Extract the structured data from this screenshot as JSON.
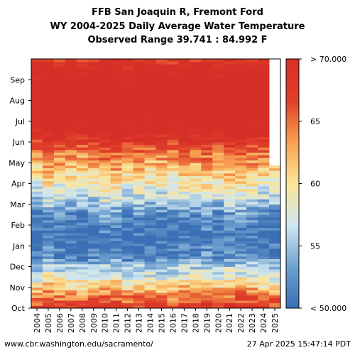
{
  "header": {
    "title": "FFB San Joaquin R, Fremont Ford",
    "subtitle": "WY 2004-2025 Daily Average Water Temperature",
    "range_line": "Observed Range 39.741 : 84.992 F"
  },
  "footer": {
    "source": "www.cbr.washington.edu/sacramento/",
    "timestamp": "27 Apr 2025 15:47:14 PDT"
  },
  "chart_data": {
    "type": "heatmap",
    "title": "FFB San Joaquin R, Fremont Ford",
    "x": {
      "label": "",
      "categories": [
        "2004",
        "2005",
        "2006",
        "2007",
        "2008",
        "2009",
        "2010",
        "2011",
        "2012",
        "2013",
        "2014",
        "2015",
        "2016",
        "2017",
        "2018",
        "2019",
        "2020",
        "2021",
        "2022",
        "2023",
        "2024",
        "2025"
      ]
    },
    "y": {
      "label": "",
      "ticks": [
        "Oct",
        "Nov",
        "Dec",
        "Jan",
        "Feb",
        "Mar",
        "Apr",
        "May",
        "Jun",
        "Jul",
        "Aug",
        "Sep"
      ],
      "bottom_to_top": true
    },
    "colorbar": {
      "min": 50,
      "max": 70,
      "tick_labels": [
        "< 50.000",
        "55",
        "60",
        "65",
        "> 70.000"
      ],
      "tick_values": [
        50,
        55,
        60,
        65,
        70
      ],
      "colors": [
        "#3a6fb5",
        "#6fa0cf",
        "#cfe6ef",
        "#fbe59a",
        "#f7a150",
        "#e0402a",
        "#d62f27"
      ]
    },
    "monthly_temperature_F": {
      "Oct": 65,
      "Nov": 58,
      "Dec": 52,
      "Jan": 50,
      "Feb": 52,
      "Mar": 57,
      "Apr": 61,
      "May": 65,
      "Jun": 71,
      "Jul": 75,
      "Aug": 74,
      "Sep": 71
    },
    "missing_periods": [
      {
        "year": "2025",
        "from": "Apr 27",
        "to": "Sep 30"
      }
    ],
    "grid": false,
    "legend": "right colorbar"
  }
}
